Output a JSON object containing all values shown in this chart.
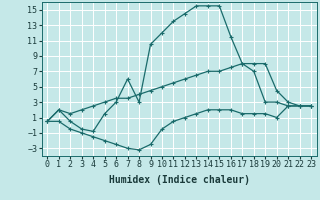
{
  "xlabel": "Humidex (Indice chaleur)",
  "background_color": "#c5e8e8",
  "grid_color": "#ffffff",
  "line_color": "#1a6b6b",
  "xlim": [
    -0.5,
    23.5
  ],
  "ylim": [
    -4,
    16
  ],
  "xticks": [
    0,
    1,
    2,
    3,
    4,
    5,
    6,
    7,
    8,
    9,
    10,
    11,
    12,
    13,
    14,
    15,
    16,
    17,
    18,
    19,
    20,
    21,
    22,
    23
  ],
  "yticks": [
    -3,
    -1,
    1,
    3,
    5,
    7,
    9,
    11,
    13,
    15
  ],
  "line1_x": [
    0,
    1,
    2,
    3,
    4,
    5,
    6,
    7,
    8,
    9,
    10,
    11,
    12,
    13,
    14,
    15,
    16,
    17,
    18,
    19,
    20,
    21,
    22,
    23
  ],
  "line1_y": [
    0.5,
    2.0,
    0.5,
    -0.5,
    -0.8,
    1.5,
    3.0,
    6.0,
    3.0,
    10.5,
    12.0,
    13.5,
    14.5,
    15.5,
    15.5,
    15.5,
    11.5,
    8.0,
    7.0,
    3.0,
    3.0,
    2.5,
    2.5,
    2.5
  ],
  "line2_x": [
    0,
    1,
    2,
    3,
    4,
    5,
    6,
    7,
    8,
    9,
    10,
    11,
    12,
    13,
    14,
    15,
    16,
    17,
    18,
    19,
    20,
    21,
    22,
    23
  ],
  "line2_y": [
    0.5,
    2.0,
    1.5,
    2.0,
    2.5,
    3.0,
    3.5,
    3.5,
    4.0,
    4.5,
    5.0,
    5.5,
    6.0,
    6.5,
    7.0,
    7.0,
    7.5,
    8.0,
    8.0,
    8.0,
    4.5,
    3.0,
    2.5,
    2.5
  ],
  "line3_x": [
    0,
    1,
    2,
    3,
    4,
    5,
    6,
    7,
    8,
    9,
    10,
    11,
    12,
    13,
    14,
    15,
    16,
    17,
    18,
    19,
    20,
    21,
    22,
    23
  ],
  "line3_y": [
    0.5,
    0.5,
    -0.5,
    -1.0,
    -1.5,
    -2.0,
    -2.5,
    -3.0,
    -3.2,
    -2.5,
    -0.5,
    0.5,
    1.0,
    1.5,
    2.0,
    2.0,
    2.0,
    1.5,
    1.5,
    1.5,
    1.0,
    2.5,
    2.5,
    2.5
  ],
  "xlabel_fontsize": 7,
  "tick_fontsize": 6
}
